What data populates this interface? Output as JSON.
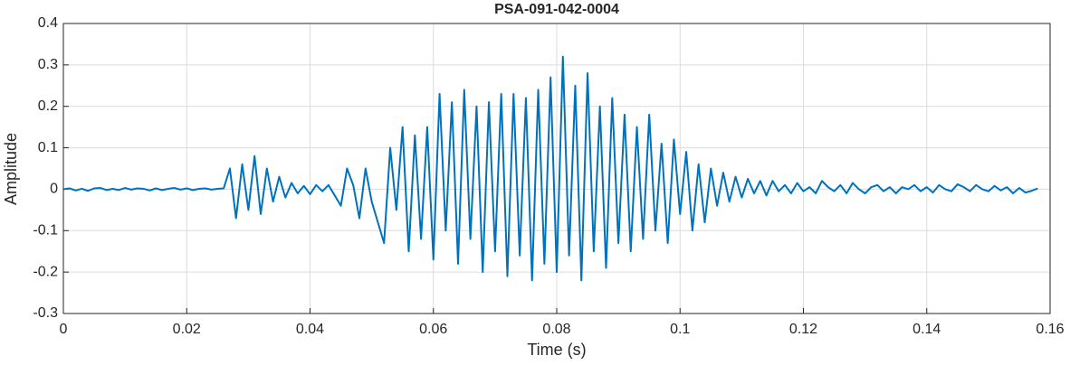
{
  "chart_data": {
    "type": "line",
    "title": "PSA-091-042-0004",
    "xlabel": "Time (s)",
    "ylabel": "Amplitude",
    "xlim": [
      0,
      0.16
    ],
    "xticks": [
      0,
      0.02,
      0.04,
      0.06,
      0.08,
      0.1,
      0.12,
      0.14,
      0.16
    ],
    "ylim": [
      -0.3,
      0.4
    ],
    "yticks": [
      -0.3,
      -0.2,
      -0.1,
      0,
      0.1,
      0.2,
      0.3,
      0.4
    ],
    "grid": true,
    "x": [
      0,
      0.001,
      0.002,
      0.003,
      0.004,
      0.005,
      0.006,
      0.007,
      0.008,
      0.009,
      0.01,
      0.011,
      0.012,
      0.013,
      0.014,
      0.015,
      0.016,
      0.017,
      0.018,
      0.019,
      0.02,
      0.021,
      0.022,
      0.023,
      0.024,
      0.025,
      0.026,
      0.027,
      0.028,
      0.029,
      0.03,
      0.031,
      0.032,
      0.033,
      0.034,
      0.035,
      0.036,
      0.037,
      0.038,
      0.039,
      0.04,
      0.041,
      0.042,
      0.043,
      0.044,
      0.045,
      0.046,
      0.047,
      0.048,
      0.049,
      0.05,
      0.051,
      0.052,
      0.053,
      0.054,
      0.055,
      0.056,
      0.057,
      0.058,
      0.059,
      0.06,
      0.061,
      0.062,
      0.063,
      0.064,
      0.065,
      0.066,
      0.067,
      0.068,
      0.069,
      0.07,
      0.071,
      0.072,
      0.073,
      0.074,
      0.075,
      0.076,
      0.077,
      0.078,
      0.079,
      0.08,
      0.081,
      0.082,
      0.083,
      0.084,
      0.085,
      0.086,
      0.087,
      0.088,
      0.089,
      0.09,
      0.091,
      0.092,
      0.093,
      0.094,
      0.095,
      0.096,
      0.097,
      0.098,
      0.099,
      0.1,
      0.101,
      0.102,
      0.103,
      0.104,
      0.105,
      0.106,
      0.107,
      0.108,
      0.109,
      0.11,
      0.111,
      0.112,
      0.113,
      0.114,
      0.115,
      0.116,
      0.117,
      0.118,
      0.119,
      0.12,
      0.121,
      0.122,
      0.123,
      0.124,
      0.125,
      0.126,
      0.127,
      0.128,
      0.129,
      0.13,
      0.131,
      0.132,
      0.133,
      0.134,
      0.135,
      0.136,
      0.137,
      0.138,
      0.139,
      0.14,
      0.141,
      0.142,
      0.143,
      0.144,
      0.145,
      0.146,
      0.147,
      0.148,
      0.149,
      0.15,
      0.151,
      0.152,
      0.153,
      0.154,
      0.155,
      0.156,
      0.157,
      0.158
    ],
    "series": [
      {
        "color": "#0072bd",
        "values": [
          0,
          0.002,
          -0.003,
          0.001,
          -0.004,
          0.002,
          0.003,
          -0.002,
          0.001,
          -0.002,
          0.003,
          -0.001,
          0.002,
          0.001,
          -0.003,
          0.002,
          -0.002,
          0.001,
          0.003,
          -0.001,
          0.002,
          -0.002,
          0.001,
          0.002,
          -0.001,
          0.001,
          0.002,
          0.05,
          -0.07,
          0.06,
          -0.05,
          0.08,
          -0.06,
          0.05,
          -0.03,
          0.03,
          -0.02,
          0.015,
          -0.01,
          0.008,
          -0.012,
          0.01,
          -0.005,
          0.01,
          -0.015,
          -0.04,
          0.05,
          0.01,
          -0.07,
          0.05,
          -0.03,
          -0.08,
          -0.13,
          0.1,
          -0.05,
          0.15,
          -0.15,
          0.13,
          -0.12,
          0.15,
          -0.17,
          0.23,
          -0.1,
          0.21,
          -0.18,
          0.24,
          -0.12,
          0.2,
          -0.2,
          0.21,
          -0.15,
          0.23,
          -0.21,
          0.23,
          -0.16,
          0.22,
          -0.22,
          0.24,
          -0.18,
          0.27,
          -0.2,
          0.32,
          -0.16,
          0.25,
          -0.22,
          0.28,
          -0.15,
          0.2,
          -0.19,
          0.22,
          -0.13,
          0.18,
          -0.15,
          0.15,
          -0.12,
          0.18,
          -0.1,
          0.11,
          -0.13,
          0.12,
          -0.06,
          0.09,
          -0.1,
          0.06,
          -0.08,
          0.05,
          -0.04,
          0.04,
          -0.03,
          0.03,
          -0.02,
          0.025,
          -0.01,
          0.02,
          -0.015,
          0.02,
          -0.005,
          0.01,
          -0.01,
          0.015,
          -0.005,
          0.005,
          -0.01,
          0.02,
          0.005,
          -0.005,
          0.01,
          -0.01,
          0.015,
          0,
          -0.01,
          0.005,
          0.01,
          -0.005,
          0.005,
          -0.01,
          0.005,
          0,
          0.01,
          -0.005,
          0.005,
          -0.008,
          0.01,
          0,
          -0.005,
          0.012,
          0.005,
          -0.005,
          0.01,
          0,
          -0.005,
          0.008,
          -0.003,
          0.005,
          -0.01,
          0.003,
          -0.008,
          -0.004,
          0.002
        ]
      }
    ]
  }
}
